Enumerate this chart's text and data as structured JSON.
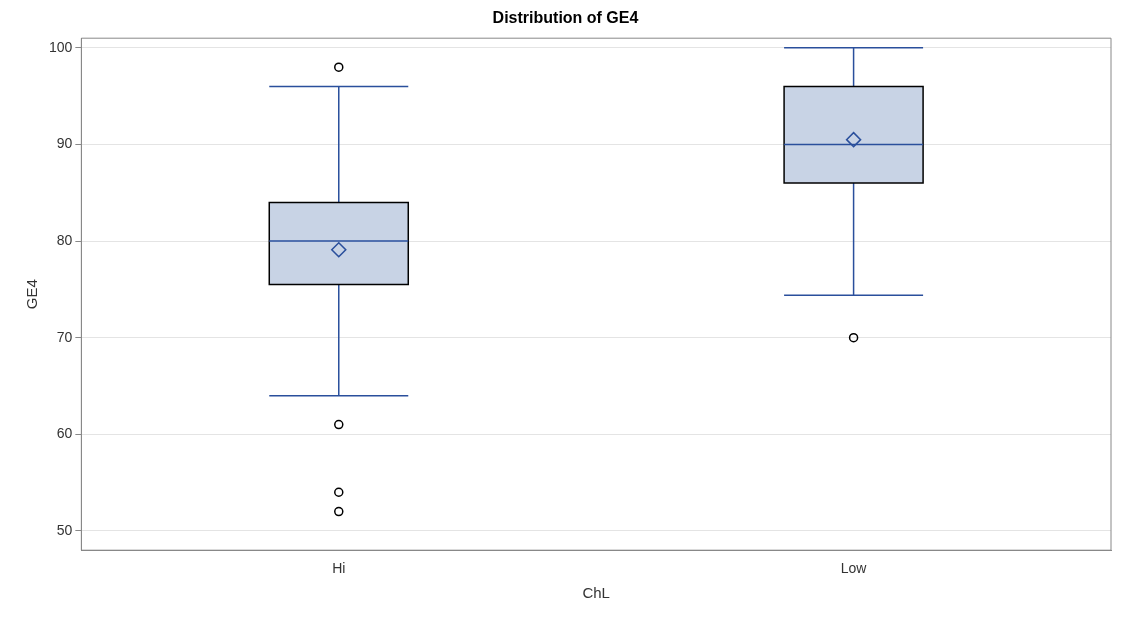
{
  "chart_data": {
    "type": "box",
    "title": "Distribution of GE4",
    "xlabel": "ChL",
    "ylabel": "GE4",
    "categories": [
      "Hi",
      "Low"
    ],
    "color": "#c8d3e5",
    "boxes": [
      {
        "low": 64,
        "q1": 75.5,
        "median": 80,
        "q3": 84,
        "high": 96,
        "mean": 79.1,
        "outliers": [
          98,
          61,
          54,
          52
        ]
      },
      {
        "low": 74.4,
        "q1": 86,
        "median": 90,
        "q3": 96,
        "high": 100,
        "mean": 90.5,
        "outliers": [
          70
        ]
      }
    ],
    "ylim": [
      48,
      101
    ],
    "yticks": [
      50,
      60,
      70,
      80,
      90,
      100
    ],
    "grid": "y",
    "legend": false
  }
}
